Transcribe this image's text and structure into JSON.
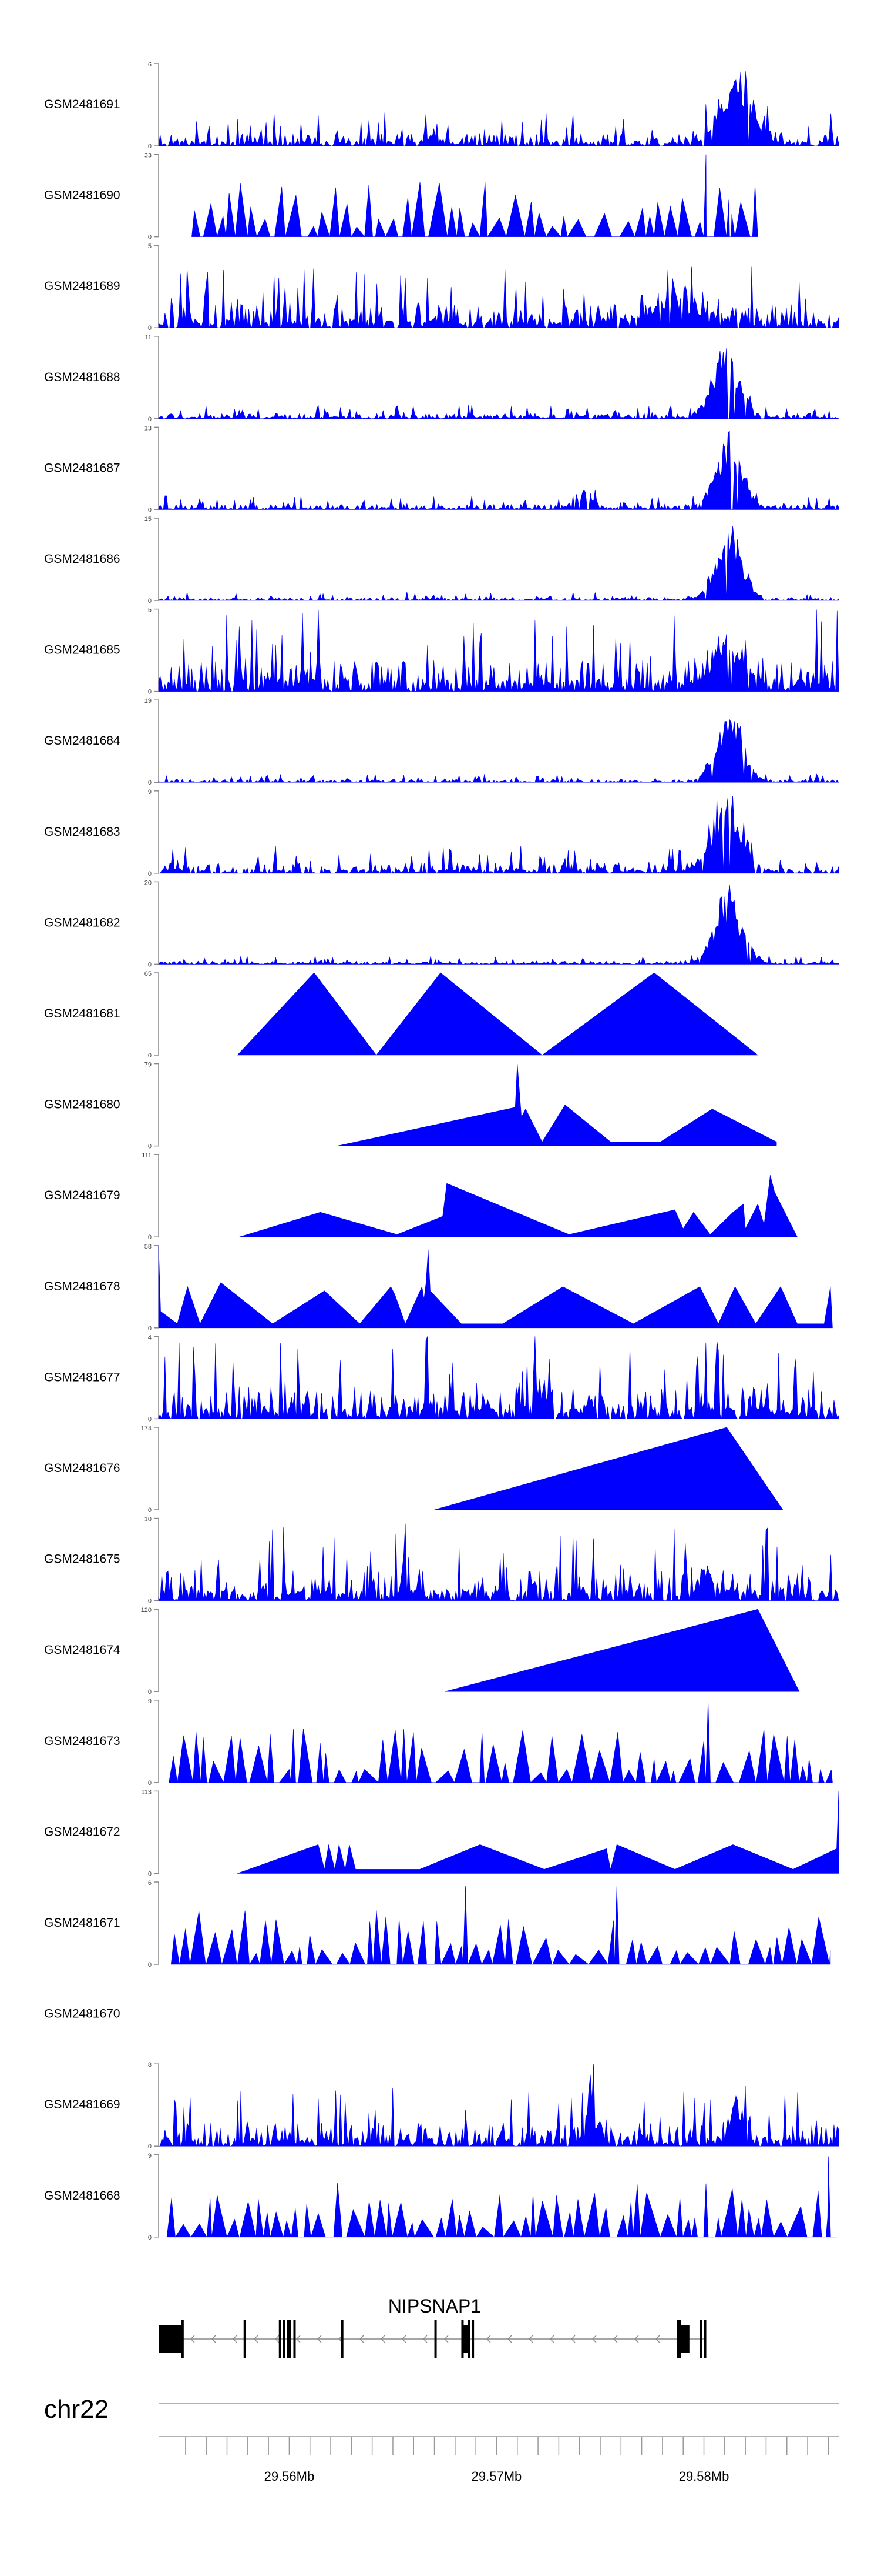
{
  "chart_data": {
    "type": "area",
    "genome": "chr22",
    "xlim_mb": [
      29.5537,
      29.5865
    ],
    "x_ticks_mb": [
      29.555,
      29.556,
      29.557,
      29.558,
      29.559,
      29.56,
      29.561,
      29.562,
      29.563,
      29.564,
      29.565,
      29.566,
      29.567,
      29.568,
      29.569,
      29.57,
      29.571,
      29.572,
      29.573,
      29.574,
      29.575,
      29.576,
      29.577,
      29.578,
      29.579,
      29.58,
      29.581,
      29.582,
      29.583,
      29.584,
      29.585,
      29.586
    ],
    "x_tick_labels": [
      {
        "mb": 29.56,
        "label": "29.56Mb"
      },
      {
        "mb": 29.57,
        "label": "29.57Mb"
      },
      {
        "mb": 29.58,
        "label": "29.58Mb"
      }
    ],
    "tracks": [
      {
        "name": "GSM2481691",
        "ymax": 6,
        "ymax_label": "6",
        "profile": "noise",
        "seed": 11,
        "base": 0.12,
        "peaks": [
          {
            "mb": 29.5815,
            "w": 0.0011,
            "h": 0.85
          }
        ]
      },
      {
        "name": "GSM2481690",
        "ymax": 33,
        "ymax_label": "33",
        "profile": "sparse",
        "seed": 12,
        "start": 29.5553,
        "end": 29.5826,
        "spikes": [
          {
            "mb": 29.5801,
            "h": 1.0
          },
          {
            "mb": 29.5812,
            "h": 0.45
          }
        ]
      },
      {
        "name": "GSM2481689",
        "ymax": 5,
        "ymax_label": "5",
        "profile": "noise",
        "seed": 13,
        "base": 0.22,
        "peaks": [
          {
            "mb": 29.5785,
            "w": 0.002,
            "h": 0.3
          }
        ]
      },
      {
        "name": "GSM2481688",
        "ymax": 11,
        "ymax_label": "11",
        "profile": "noise",
        "seed": 14,
        "base": 0.05,
        "peaks": [
          {
            "mb": 29.5811,
            "w": 0.0009,
            "h": 0.95
          }
        ]
      },
      {
        "name": "GSM2481687",
        "ymax": 13,
        "ymax_label": "13",
        "profile": "noise",
        "seed": 15,
        "base": 0.05,
        "peaks": [
          {
            "mb": 29.5812,
            "w": 0.0009,
            "h": 0.9
          },
          {
            "mb": 29.5742,
            "w": 0.0006,
            "h": 0.25
          }
        ]
      },
      {
        "name": "GSM2481686",
        "ymax": 15,
        "ymax_label": "15",
        "profile": "noise",
        "seed": 16,
        "base": 0.03,
        "peaks": [
          {
            "mb": 29.5812,
            "w": 0.0009,
            "h": 0.95
          }
        ]
      },
      {
        "name": "GSM2481685",
        "ymax": 5,
        "ymax_label": "5",
        "profile": "noise",
        "seed": 17,
        "base": 0.3,
        "peaks": [
          {
            "mb": 29.5812,
            "w": 0.001,
            "h": 0.6
          }
        ]
      },
      {
        "name": "GSM2481684",
        "ymax": 19,
        "ymax_label": "19",
        "profile": "noise",
        "seed": 18,
        "base": 0.03,
        "peaks": [
          {
            "mb": 29.5812,
            "w": 0.0009,
            "h": 0.95
          }
        ]
      },
      {
        "name": "GSM2481683",
        "ymax": 9,
        "ymax_label": "9",
        "profile": "noise",
        "seed": 19,
        "base": 0.1,
        "peaks": [
          {
            "mb": 29.5812,
            "w": 0.001,
            "h": 0.85
          }
        ]
      },
      {
        "name": "GSM2481682",
        "ymax": 20,
        "ymax_label": "20",
        "profile": "noise",
        "seed": 20,
        "base": 0.03,
        "peaks": [
          {
            "mb": 29.5812,
            "w": 0.0009,
            "h": 0.95
          }
        ]
      },
      {
        "name": "GSM2481681",
        "ymax": 65,
        "ymax_label": "65",
        "profile": "points",
        "points": [
          [
            29.5575,
            0
          ],
          [
            29.5612,
            1
          ],
          [
            29.5642,
            0
          ],
          [
            29.5673,
            1
          ],
          [
            29.5722,
            0
          ],
          [
            29.5776,
            1
          ],
          [
            29.5826,
            0
          ]
        ]
      },
      {
        "name": "GSM2481680",
        "ymax": 79,
        "ymax_label": "79",
        "profile": "points",
        "points": [
          [
            29.5623,
            0
          ],
          [
            29.5709,
            0.47
          ],
          [
            29.571,
            1.0
          ],
          [
            29.5712,
            0.35
          ],
          [
            29.5714,
            0.45
          ],
          [
            29.5718,
            0.25
          ],
          [
            29.5722,
            0.05
          ],
          [
            29.5733,
            0.5
          ],
          [
            29.5755,
            0.05
          ],
          [
            29.5779,
            0.05
          ],
          [
            29.5804,
            0.45
          ],
          [
            29.5835,
            0.05
          ]
        ]
      },
      {
        "name": "GSM2481679",
        "ymax": 111,
        "ymax_label": "111",
        "profile": "points",
        "points": [
          [
            29.5576,
            0
          ],
          [
            29.5615,
            0.3
          ],
          [
            29.5652,
            0.03
          ],
          [
            29.5674,
            0.25
          ],
          [
            29.5676,
            0.65
          ],
          [
            29.5735,
            0.03
          ],
          [
            29.5786,
            0.33
          ],
          [
            29.579,
            0.1
          ],
          [
            29.5795,
            0.3
          ],
          [
            29.5803,
            0.03
          ],
          [
            29.5814,
            0.3
          ],
          [
            29.5819,
            0.4
          ],
          [
            29.582,
            0.1
          ],
          [
            29.5826,
            0.4
          ],
          [
            29.5829,
            0.15
          ],
          [
            29.5832,
            0.75
          ],
          [
            29.5834,
            0.55
          ],
          [
            29.5845,
            0
          ]
        ]
      },
      {
        "name": "GSM2481678",
        "ymax": 58,
        "ymax_label": "58",
        "profile": "points",
        "points": [
          [
            29.5537,
            1.0
          ],
          [
            29.5538,
            0.2
          ],
          [
            29.5546,
            0.05
          ],
          [
            29.5551,
            0.5
          ],
          [
            29.5557,
            0.05
          ],
          [
            29.5567,
            0.55
          ],
          [
            29.5592,
            0.05
          ],
          [
            29.5617,
            0.45
          ],
          [
            29.5634,
            0.05
          ],
          [
            29.5649,
            0.5
          ],
          [
            29.5651,
            0.4
          ],
          [
            29.5656,
            0.05
          ],
          [
            29.5664,
            0.5
          ],
          [
            29.5665,
            0.35
          ],
          [
            29.5666,
            0.55
          ],
          [
            29.5667,
            0.95
          ],
          [
            29.5668,
            0.45
          ],
          [
            29.5683,
            0.05
          ],
          [
            29.5703,
            0.05
          ],
          [
            29.5732,
            0.5
          ],
          [
            29.5766,
            0.05
          ],
          [
            29.5798,
            0.5
          ],
          [
            29.5807,
            0.05
          ],
          [
            29.5815,
            0.5
          ],
          [
            29.5825,
            0.05
          ],
          [
            29.5837,
            0.5
          ],
          [
            29.5845,
            0.05
          ],
          [
            29.5858,
            0.05
          ],
          [
            29.5861,
            0.5
          ],
          [
            29.5862,
            0
          ]
        ]
      },
      {
        "name": "GSM2481677",
        "ymax": 4,
        "ymax_label": "4",
        "profile": "noise",
        "seed": 21,
        "base": 0.3,
        "peaks": [
          {
            "mb": 29.572,
            "w": 0.0005,
            "h": 0.45
          }
        ]
      },
      {
        "name": "GSM2481676",
        "ymax": 174,
        "ymax_label": "174",
        "profile": "points",
        "points": [
          [
            29.567,
            0
          ],
          [
            29.5811,
            1.0
          ],
          [
            29.5838,
            0
          ]
        ]
      },
      {
        "name": "GSM2481675",
        "ymax": 10,
        "ymax_label": "10",
        "profile": "noise",
        "seed": 22,
        "base": 0.28,
        "peaks": [
          {
            "mb": 29.5801,
            "w": 0.0005,
            "h": 0.4
          }
        ]
      },
      {
        "name": "GSM2481674",
        "ymax": 120,
        "ymax_label": "120",
        "profile": "points",
        "points": [
          [
            29.5675,
            0
          ],
          [
            29.5826,
            1.0
          ],
          [
            29.5846,
            0
          ]
        ]
      },
      {
        "name": "GSM2481673",
        "ymax": 9,
        "ymax_label": "9",
        "profile": "sparse",
        "seed": 23,
        "start": 29.5542,
        "end": 29.5862,
        "spikes": [
          {
            "mb": 29.5802,
            "h": 1.0
          },
          {
            "mb": 29.5602,
            "h": 0.65
          },
          {
            "mb": 29.5693,
            "h": 0.6
          }
        ]
      },
      {
        "name": "GSM2481672",
        "ymax": 113,
        "ymax_label": "113",
        "profile": "points",
        "points": [
          [
            29.5575,
            0
          ],
          [
            29.5614,
            0.35
          ],
          [
            29.5617,
            0.05
          ],
          [
            29.5619,
            0.35
          ],
          [
            29.5622,
            0.05
          ],
          [
            29.5624,
            0.35
          ],
          [
            29.5627,
            0.05
          ],
          [
            29.5629,
            0.35
          ],
          [
            29.5632,
            0.05
          ],
          [
            29.5663,
            0.05
          ],
          [
            29.5692,
            0.35
          ],
          [
            29.5723,
            0.05
          ],
          [
            29.5753,
            0.3
          ],
          [
            29.5755,
            0.05
          ],
          [
            29.5758,
            0.35
          ],
          [
            29.5786,
            0.05
          ],
          [
            29.5814,
            0.35
          ],
          [
            29.5843,
            0.05
          ],
          [
            29.5864,
            0.3
          ],
          [
            29.5865,
            1.0
          ],
          [
            29.5865,
            0
          ]
        ]
      },
      {
        "name": "GSM2481671",
        "ymax": 6,
        "ymax_label": "6",
        "profile": "sparse",
        "seed": 24,
        "start": 29.5543,
        "end": 29.5861,
        "spikes": [
          {
            "mb": 29.5685,
            "h": 0.95
          },
          {
            "mb": 29.5758,
            "h": 0.95
          }
        ]
      },
      {
        "name": "GSM2481670",
        "ymax": null,
        "ymax_label": "",
        "profile": "empty"
      },
      {
        "name": "GSM2481669",
        "ymax": 8,
        "ymax_label": "8",
        "profile": "noise",
        "seed": 25,
        "base": 0.22,
        "peaks": [
          {
            "mb": 29.5817,
            "w": 0.0004,
            "h": 0.6
          },
          {
            "mb": 29.5745,
            "w": 0.0004,
            "h": 0.45
          }
        ]
      },
      {
        "name": "GSM2481668",
        "ymax": 9,
        "ymax_label": "9",
        "profile": "sparse",
        "seed": 26,
        "start": 29.5541,
        "end": 29.5864,
        "spikes": [
          {
            "mb": 29.586,
            "h": 0.98
          },
          {
            "mb": 29.5801,
            "h": 0.65
          }
        ]
      }
    ],
    "gene": {
      "name": "NIPSNAP1",
      "strand": "-",
      "exons": [
        {
          "start": 29.5537,
          "end": 29.5548,
          "thick": true
        },
        {
          "start": 29.5548,
          "end": 29.5549
        },
        {
          "start": 29.5578,
          "end": 29.5579
        },
        {
          "start": 29.5595,
          "end": 29.5596
        },
        {
          "start": 29.5597,
          "end": 29.5598
        },
        {
          "start": 29.5599,
          "end": 29.5601
        },
        {
          "start": 29.5602,
          "end": 29.5603
        },
        {
          "start": 29.5625,
          "end": 29.5626
        },
        {
          "start": 29.567,
          "end": 29.5671
        },
        {
          "start": 29.5683,
          "end": 29.5684
        },
        {
          "start": 29.5684,
          "end": 29.5686,
          "thick": true
        },
        {
          "start": 29.5686,
          "end": 29.5687
        },
        {
          "start": 29.5688,
          "end": 29.5689
        },
        {
          "start": 29.5787,
          "end": 29.5789
        },
        {
          "start": 29.5789,
          "end": 29.5793,
          "thick": true
        },
        {
          "start": 29.5798,
          "end": 29.5799
        },
        {
          "start": 29.58,
          "end": 29.5801
        }
      ],
      "span": [
        29.5537,
        29.5801
      ]
    }
  }
}
